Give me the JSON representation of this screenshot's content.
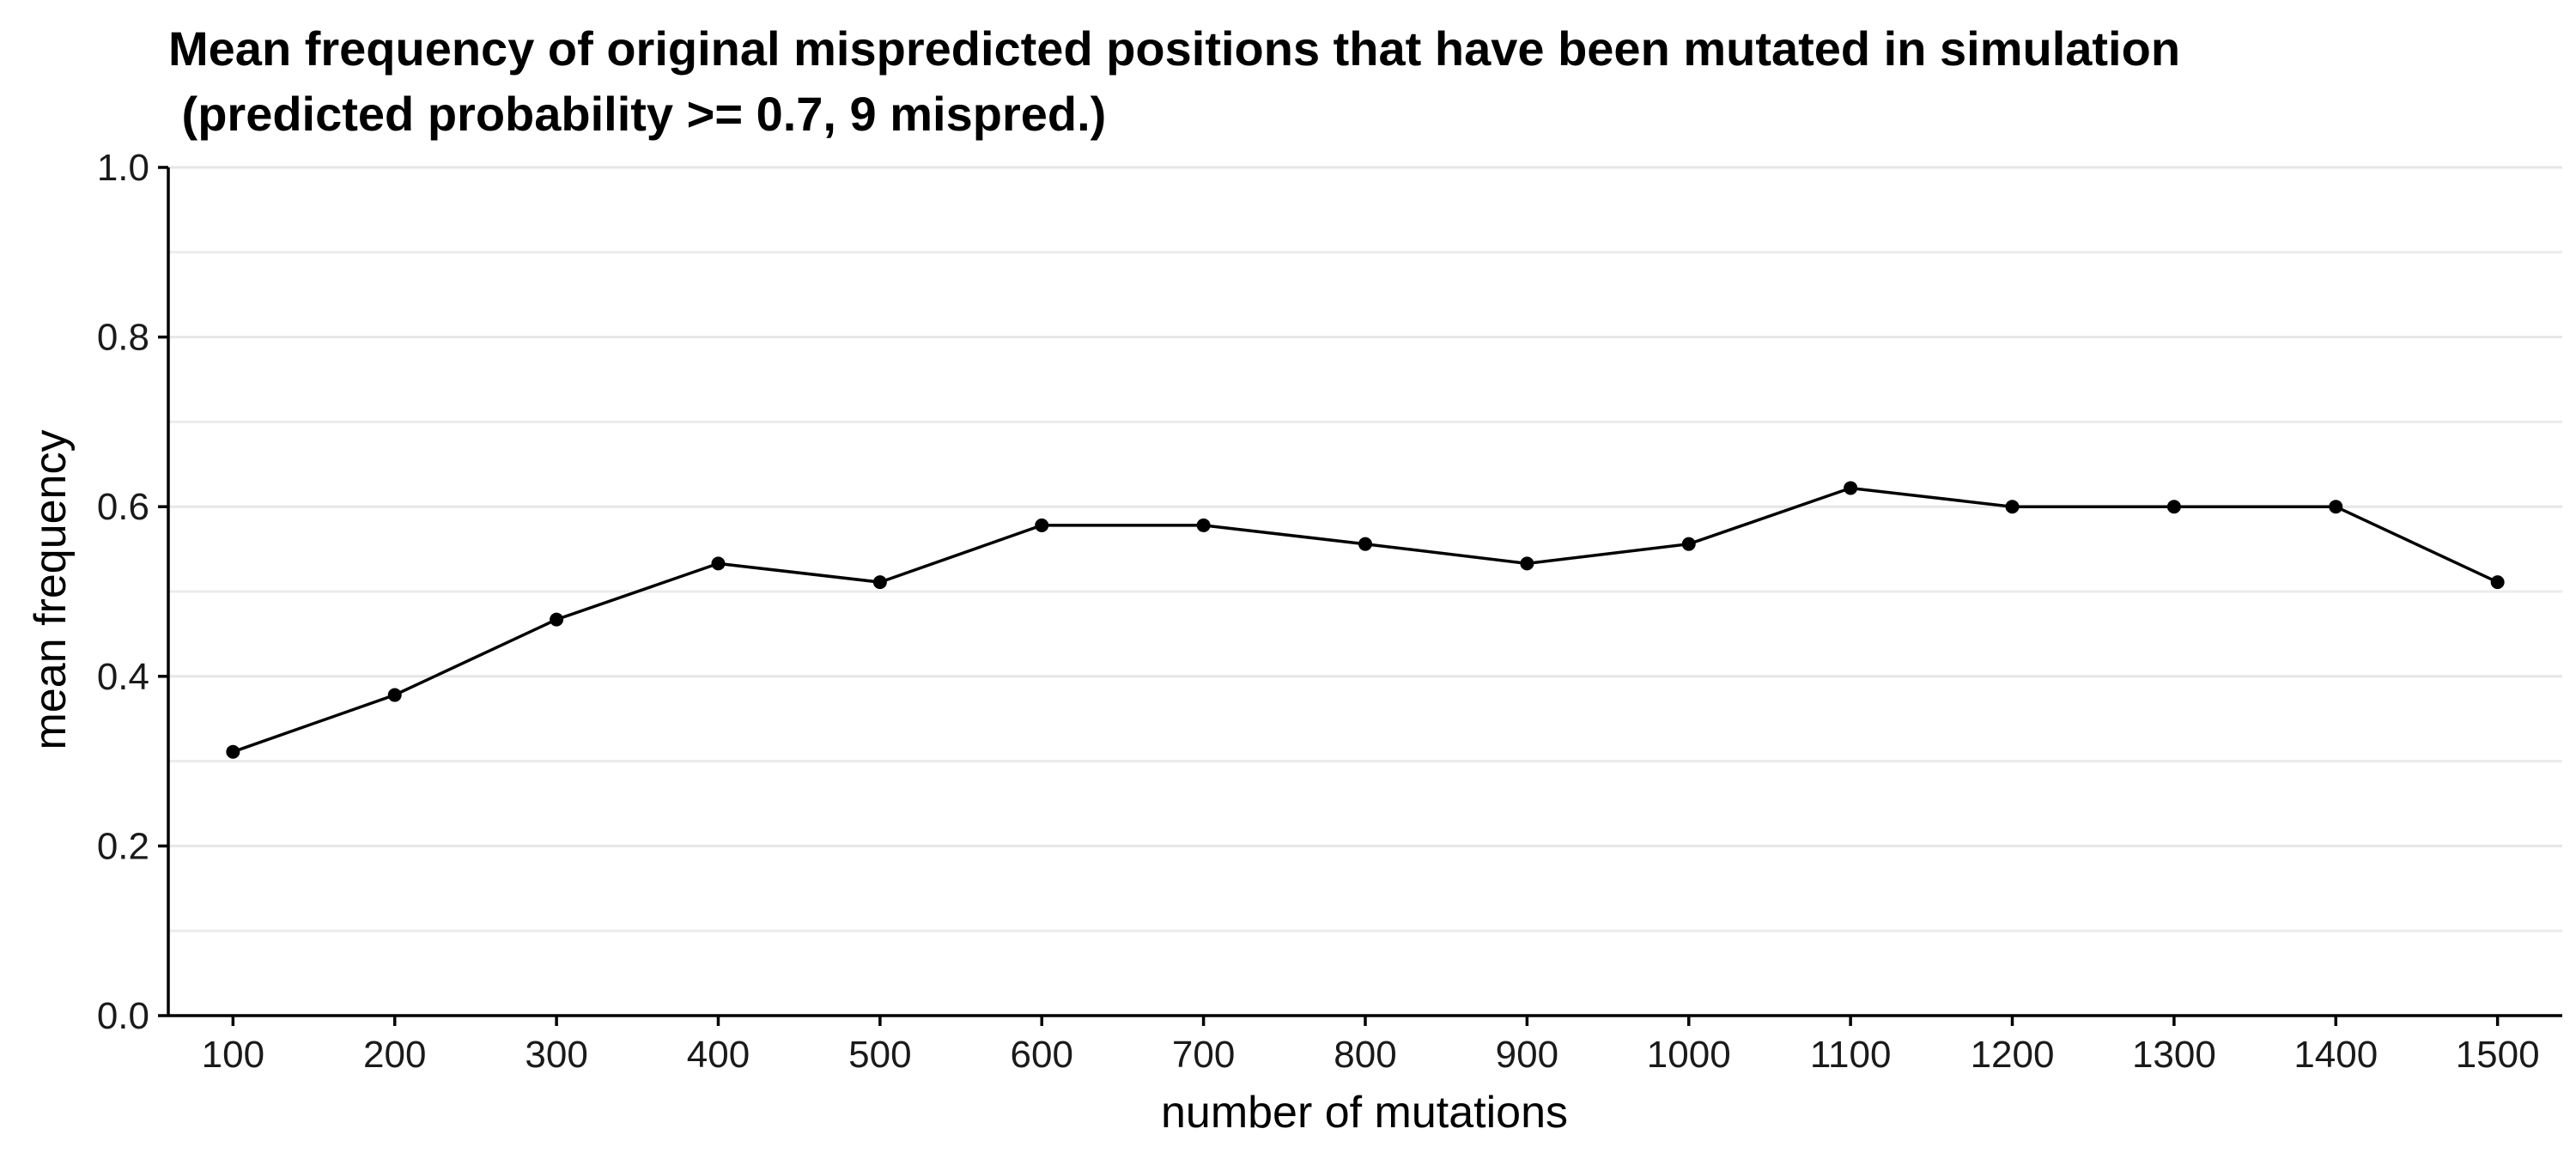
{
  "chart_data": {
    "type": "line",
    "title": "Mean frequency of original mispredicted positions that have been mutated in simulation",
    "subtitle": " (predicted probability >= 0.7, 9 mispred.)",
    "xlabel": "number of mutations",
    "ylabel": "mean frequency",
    "ylim": [
      0,
      1
    ],
    "xlim": [
      60,
      1540
    ],
    "grid": "horizontal",
    "y_ticks": [
      "0.0",
      "0.2",
      "0.4",
      "0.6",
      "0.8",
      "1.0"
    ],
    "x_ticks": [
      "100",
      "200",
      "300",
      "400",
      "500",
      "600",
      "700",
      "800",
      "900",
      "1000",
      "1100",
      "1200",
      "1300",
      "1400",
      "1500"
    ],
    "x": [
      100,
      200,
      300,
      400,
      500,
      600,
      700,
      800,
      900,
      1000,
      1100,
      1200,
      1300,
      1400,
      1500
    ],
    "series": [
      {
        "values": [
          0.311,
          0.378,
          0.467,
          0.533,
          0.511,
          0.578,
          0.578,
          0.556,
          0.533,
          0.556,
          0.622,
          0.6,
          0.6,
          0.6,
          0.511
        ]
      }
    ],
    "colors": {
      "line": "#000000",
      "point": "#000000",
      "grid": "#e6e6e6",
      "background": "#ffffff"
    }
  }
}
